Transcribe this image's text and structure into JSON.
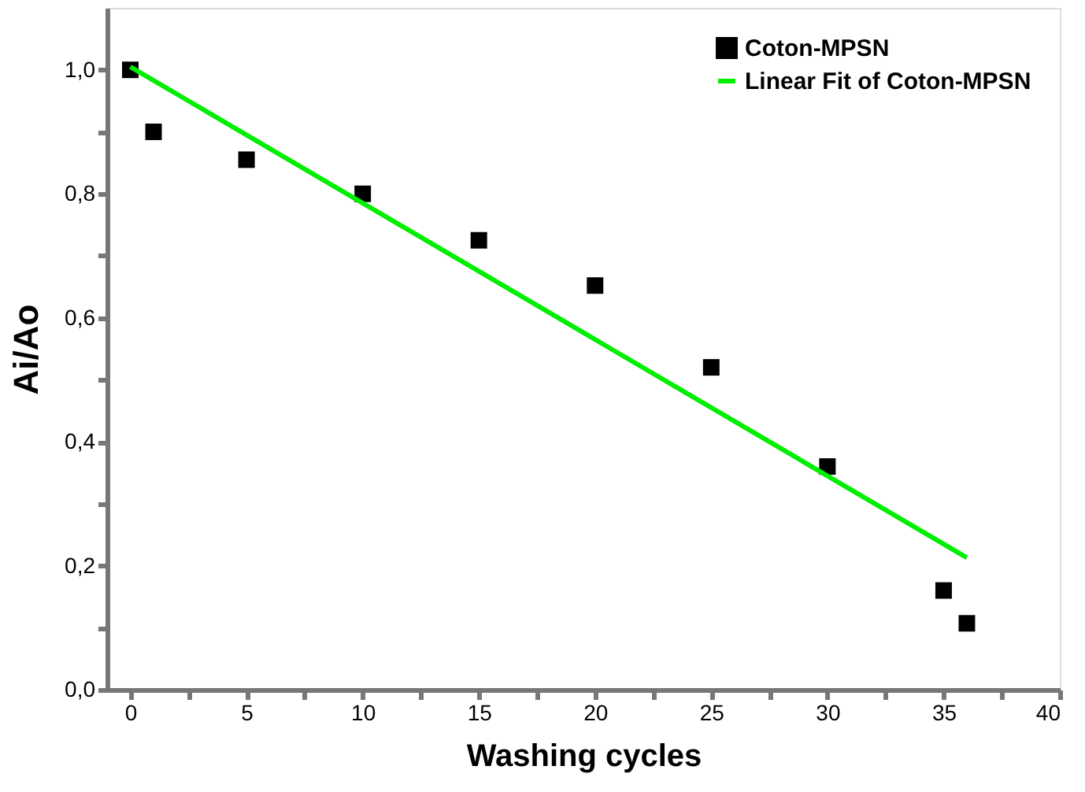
{
  "chart_data": {
    "type": "scatter",
    "xlabel": "Washing cycles",
    "ylabel": "Ai/Ao",
    "series": [
      {
        "name": "Coton-MPSN",
        "color": "#000000",
        "marker": "square",
        "x": [
          0,
          1,
          5,
          10,
          15,
          20,
          25,
          30,
          35,
          36
        ],
        "values": [
          1.0,
          0.9,
          0.855,
          0.8,
          0.725,
          0.652,
          0.52,
          0.36,
          0.16,
          0.107
        ]
      },
      {
        "name": "Linear Fit of Coton-MPSN",
        "type": "line",
        "color": "#00ee00",
        "line_style": "solid",
        "x": [
          0,
          36
        ],
        "values": [
          1.005,
          0.213
        ]
      }
    ],
    "xlim": [
      -1,
      40
    ],
    "xticks": [
      0,
      {
        "value": 2.5,
        "label": null
      },
      5,
      {
        "value": 7.5,
        "label": null
      },
      10,
      {
        "value": 12.5,
        "label": null
      },
      15,
      {
        "value": 17.5,
        "label": null
      },
      20,
      {
        "value": 22.5,
        "label": null
      },
      25,
      {
        "value": 27.5,
        "label": null
      },
      30,
      {
        "value": 32.5,
        "label": null
      },
      35,
      {
        "value": 37.5,
        "label": null
      },
      40
    ],
    "ylim": [
      0,
      1.1
    ],
    "yticks": [
      {
        "value": 0,
        "label": "0,0"
      },
      {
        "value": 0.1,
        "label": null
      },
      {
        "value": 0.2,
        "label": "0,2"
      },
      {
        "value": 0.3,
        "label": null
      },
      {
        "value": 0.4,
        "label": "0,4"
      },
      {
        "value": 0.5,
        "label": null
      },
      {
        "value": 0.6,
        "label": "0,6"
      },
      {
        "value": 0.7,
        "label": null
      },
      {
        "value": 0.8,
        "label": "0,8"
      },
      {
        "value": 0.9,
        "label": null
      },
      {
        "value": 1.0,
        "label": "1,0"
      }
    ],
    "grid": false,
    "legend": "top right"
  }
}
